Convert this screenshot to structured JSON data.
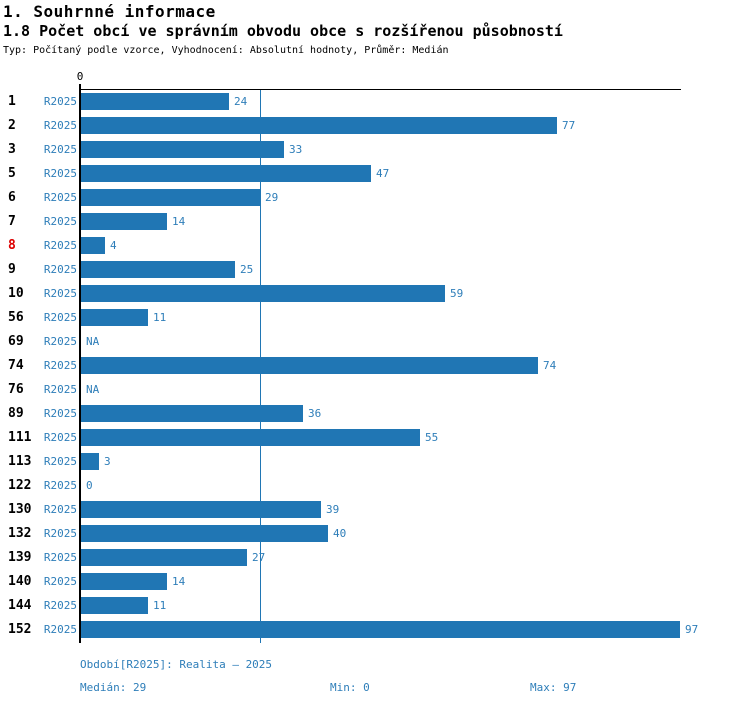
{
  "header": {
    "title": "1. Souhrnné informace",
    "subtitle": "1.8 Počet obcí ve správním obvodu obce s rozšířenou působností",
    "meta": "Typ: Počítaný podle vzorce, Vyhodnocení: Absolutní hodnoty, Průměr: Medián"
  },
  "colors": {
    "bar": "#2076b4",
    "label_blue": "#2e7eb9",
    "highlight_red": "#dd0000",
    "axis": "#000000"
  },
  "chart_data": {
    "type": "bar",
    "orientation": "horizontal",
    "title": "1.8 Počet obcí ve správním obvodu obce s rozšířenou působností",
    "series_name": "R2025",
    "categories": [
      "1",
      "2",
      "3",
      "5",
      "6",
      "7",
      "8",
      "9",
      "10",
      "56",
      "69",
      "74",
      "76",
      "89",
      "111",
      "113",
      "122",
      "130",
      "132",
      "139",
      "140",
      "144",
      "152"
    ],
    "values": [
      24,
      77,
      33,
      47,
      29,
      14,
      4,
      25,
      59,
      11,
      null,
      74,
      null,
      36,
      55,
      3,
      0,
      39,
      40,
      27,
      14,
      11,
      97
    ],
    "na_text": "NA",
    "highlighted_category": "8",
    "xlim": [
      0,
      97
    ],
    "axis_tick_labels": [
      "0"
    ],
    "median": 29,
    "min": 0,
    "max": 97,
    "grid": false,
    "legend_position": "none"
  },
  "footer": {
    "period": "Období[R2025]: Realita – 2025",
    "median": "Medián: 29",
    "min": "Min: 0",
    "max": "Max: 97"
  }
}
